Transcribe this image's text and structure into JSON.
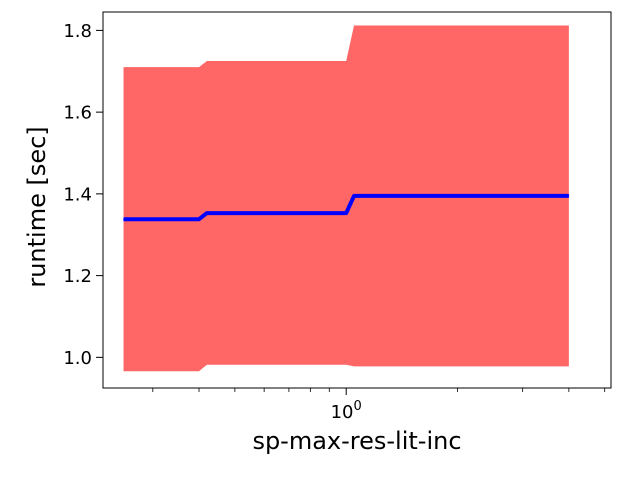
{
  "chart_data": {
    "type": "area",
    "xlabel": "sp-max-res-lit-inc",
    "ylabel": "runtime [sec]",
    "x_scale": "log",
    "xlim": [
      0.22,
      5.2
    ],
    "ylim": [
      0.925,
      1.845
    ],
    "grid": false,
    "legend": "none",
    "x_ticks": [
      {
        "value": 1,
        "label": "10",
        "exp": "0"
      }
    ],
    "y_ticks": [
      {
        "value": 1.0,
        "label": "1.0"
      },
      {
        "value": 1.2,
        "label": "1.2"
      },
      {
        "value": 1.4,
        "label": "1.4"
      },
      {
        "value": 1.6,
        "label": "1.6"
      },
      {
        "value": 1.8,
        "label": "1.8"
      }
    ],
    "series": [
      {
        "kind": "line",
        "color": "#0000ff",
        "x": [
          0.25,
          0.4,
          0.42,
          1.0,
          1.05,
          4.0
        ],
        "y": [
          1.338,
          1.338,
          1.353,
          1.353,
          1.395,
          1.395
        ]
      },
      {
        "kind": "band",
        "color": "#ff6666",
        "x": [
          0.25,
          0.4,
          0.42,
          1.0,
          1.05,
          4.0
        ],
        "upper": [
          1.71,
          1.71,
          1.725,
          1.725,
          1.812,
          1.812
        ],
        "lower": [
          0.966,
          0.966,
          0.982,
          0.982,
          0.978,
          0.978
        ]
      }
    ]
  }
}
